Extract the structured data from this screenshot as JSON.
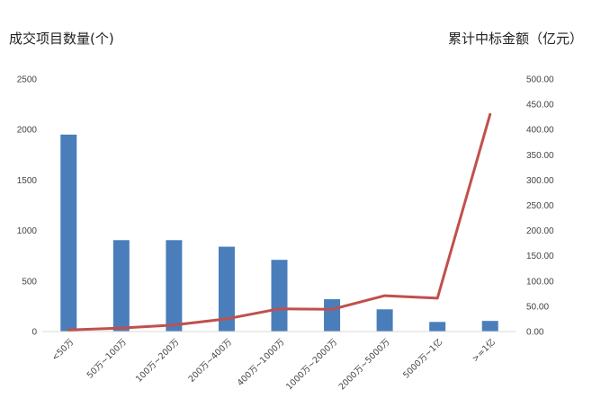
{
  "chart_data": {
    "type": "bar",
    "left_axis_title": "成交项目数量(个)",
    "right_axis_title": "累计中标金额（亿元）",
    "categories": [
      "<50万",
      "50万~100万",
      "100万~200万",
      "200万~400万",
      "400万~1000万",
      "1000万~2000万",
      "2000万~5000万",
      "5000万~1亿",
      ">=1亿"
    ],
    "series": [
      {
        "type": "bar",
        "axis": "left",
        "color": "#4a7ebb",
        "values": [
          1950,
          905,
          905,
          840,
          710,
          320,
          220,
          95,
          105
        ]
      },
      {
        "type": "line",
        "axis": "right",
        "color": "#c0504d",
        "values": [
          3,
          7,
          13,
          25,
          45,
          44,
          71,
          66,
          430
        ]
      }
    ],
    "left_axis": {
      "min": 0,
      "max": 2500,
      "step": 500,
      "tick_labels": [
        "0",
        "500",
        "1000",
        "1500",
        "2000",
        "2500"
      ]
    },
    "right_axis": {
      "min": 0,
      "max": 500,
      "step": 50,
      "tick_labels": [
        "0.00",
        "50.00",
        "100.00",
        "150.00",
        "200.00",
        "250.00",
        "300.00",
        "350.00",
        "400.00",
        "450.00",
        "500.00"
      ]
    },
    "grid": false,
    "legend": "none"
  }
}
